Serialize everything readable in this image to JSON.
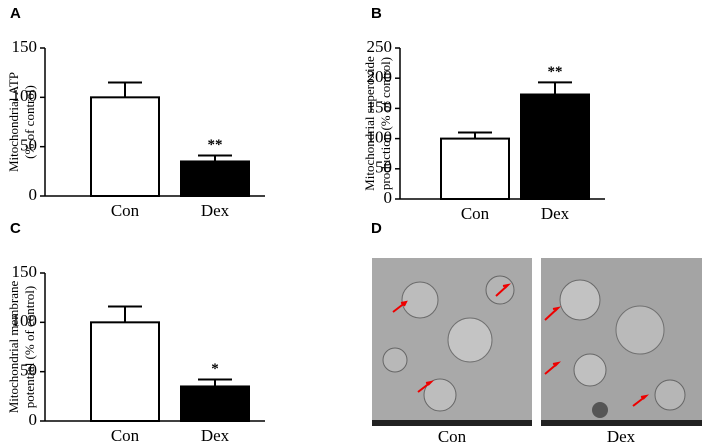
{
  "panel_labels": [
    "A",
    "B",
    "C",
    "D"
  ],
  "chart_data": [
    {
      "type": "bar",
      "ylabel": [
        "Mitochondrial ATP",
        "(% of control)"
      ],
      "categories": [
        "Con",
        "Dex"
      ],
      "values": [
        100,
        35
      ],
      "errors": [
        15,
        6
      ],
      "colors": [
        "#ffffff",
        "#000000"
      ],
      "annotations": [
        null,
        "**"
      ],
      "ylim": [
        0,
        150
      ],
      "yticks": [
        0,
        50,
        100,
        150
      ]
    },
    {
      "type": "bar",
      "ylabel": [
        "Mitochondrial superoxide",
        "production (% of control)"
      ],
      "categories": [
        "Con",
        "Dex"
      ],
      "values": [
        100,
        173
      ],
      "errors": [
        10,
        20
      ],
      "colors": [
        "#ffffff",
        "#000000"
      ],
      "annotations": [
        null,
        "**"
      ],
      "ylim": [
        0,
        250
      ],
      "yticks": [
        0,
        50,
        100,
        150,
        200,
        250
      ]
    },
    {
      "type": "bar",
      "ylabel": [
        "Mitochondrial membrane",
        "potential (% of control)"
      ],
      "categories": [
        "Con",
        "Dex"
      ],
      "values": [
        100,
        35
      ],
      "errors": [
        16,
        7
      ],
      "colors": [
        "#ffffff",
        "#000000"
      ],
      "annotations": [
        null,
        "*"
      ],
      "ylim": [
        0,
        150
      ],
      "yticks": [
        0,
        50,
        100,
        150
      ]
    }
  ],
  "image_panel": {
    "captions": [
      "Con",
      "Dex"
    ]
  }
}
